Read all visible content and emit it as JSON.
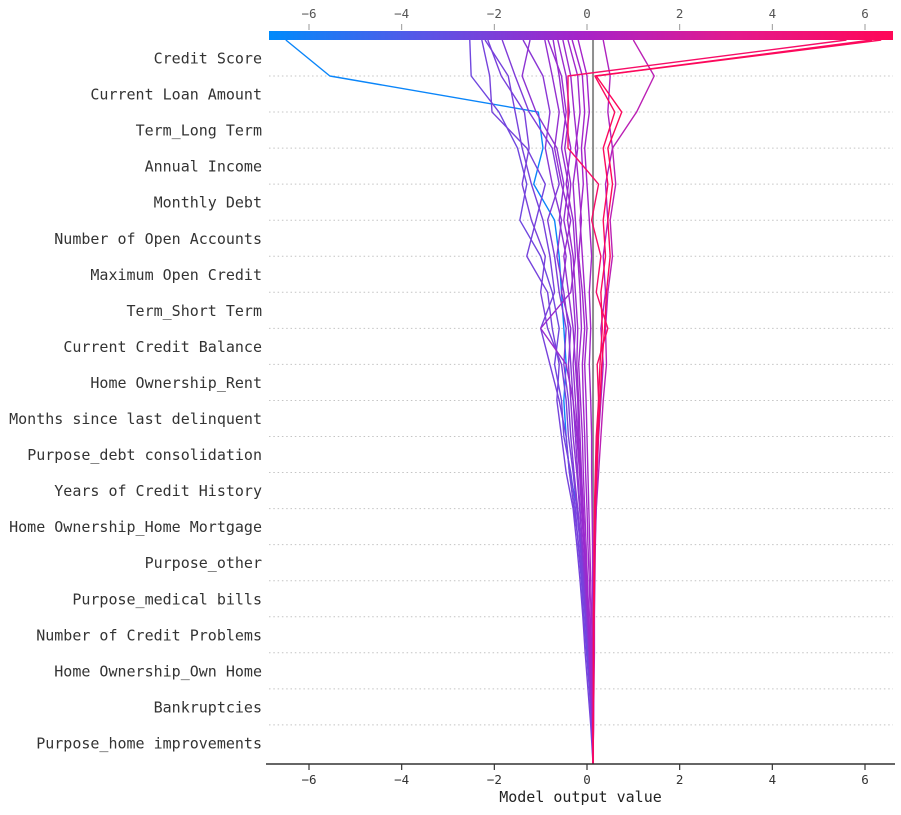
{
  "chart_data": {
    "type": "line",
    "subtype": "shap-decision-plot",
    "xlabel": "Model output value",
    "x_ticks": [
      -6,
      -4,
      -2,
      0,
      2,
      4,
      6
    ],
    "x_tick_labels": [
      "−6",
      "−4",
      "−2",
      "0",
      "2",
      "4",
      "6"
    ],
    "xlim": [
      -6.86,
      6.6
    ],
    "base_value": 0.13,
    "grid": true,
    "legend_position": "none",
    "features_top_to_bottom": [
      "Credit Score",
      "Current Loan Amount",
      "Term_Long Term",
      "Annual Income",
      "Monthly Debt",
      "Number of Open Accounts",
      "Maximum Open Credit",
      "Term_Short Term",
      "Current Credit Balance",
      "Home Ownership_Rent",
      "Months since last delinquent",
      "Purpose_debt consolidation",
      "Years of Credit History",
      "Home Ownership_Home Mortgage",
      "Purpose_other",
      "Purpose_medical bills",
      "Number of Credit Problems",
      "Home Ownership_Own Home",
      "Bankruptcies",
      "Purpose_home improvements"
    ],
    "colorbar": {
      "orientation": "horizontal-top",
      "stops": [
        {
          "pos": 0.0,
          "color": "#008bfb"
        },
        {
          "pos": 0.25,
          "color": "#5a55e6"
        },
        {
          "pos": 0.5,
          "color": "#a623c8"
        },
        {
          "pos": 0.75,
          "color": "#e41a8c"
        },
        {
          "pos": 1.0,
          "color": "#ff0757"
        }
      ]
    },
    "colors": {
      "axis": "#333333",
      "grid": "#c4c4c4",
      "base_line": "#8f8f8f",
      "tick_label_top": "#555555",
      "tick_label_bottom": "#333333",
      "feature_label": "#333333",
      "xlabel": "#222222"
    },
    "lines": [
      {
        "final": -6.5,
        "path": [
          -6.5,
          -5.55,
          -1.05,
          -0.95,
          -1.15,
          -0.7,
          -0.6,
          -0.55,
          -0.5,
          -0.45,
          -0.5,
          -0.45,
          -0.38,
          -0.2,
          -0.14,
          -0.09,
          -0.04,
          0.01,
          0.06,
          0.11,
          0.13
        ]
      },
      {
        "final": -2.53,
        "path": [
          -2.53,
          -2.5,
          -1.9,
          -1.5,
          -1.3,
          -1.45,
          -1.0,
          -0.75,
          -0.6,
          -0.7,
          -0.55,
          -0.5,
          -0.35,
          -0.25,
          -0.19,
          -0.12,
          -0.07,
          -0.01,
          0.05,
          0.1,
          0.13
        ]
      },
      {
        "final": -2.27,
        "path": [
          -2.27,
          -2.1,
          -2.05,
          -1.3,
          -0.9,
          -1.1,
          -1.3,
          -0.85,
          -0.75,
          -0.6,
          -0.65,
          -0.55,
          -0.45,
          -0.3,
          -0.22,
          -0.15,
          -0.09,
          -0.04,
          0.02,
          0.08,
          0.13
        ]
      },
      {
        "final": -2.2,
        "path": [
          -2.2,
          -1.7,
          -1.55,
          -1.4,
          -1.2,
          -0.95,
          -0.8,
          -0.7,
          -1.0,
          -0.8,
          -0.6,
          -0.45,
          -0.38,
          -0.28,
          -0.18,
          -0.1,
          -0.04,
          0.02,
          0.07,
          0.11,
          0.13
        ]
      },
      {
        "final": -2.14,
        "path": [
          -2.14,
          -1.85,
          -1.35,
          -1.25,
          -1.4,
          -1.2,
          -0.9,
          -1.0,
          -0.85,
          -0.55,
          -0.45,
          -0.4,
          -0.3,
          -0.22,
          -0.15,
          -0.08,
          -0.02,
          0.03,
          0.08,
          0.12,
          0.13
        ]
      },
      {
        "final": -1.83,
        "path": [
          -1.83,
          -1.55,
          -1.25,
          -0.75,
          -0.6,
          -0.85,
          -0.7,
          -0.6,
          -0.45,
          -0.5,
          -0.4,
          -0.35,
          -0.28,
          -0.2,
          -0.12,
          -0.06,
          0.0,
          0.05,
          0.09,
          0.12,
          0.13
        ]
      },
      {
        "final": -1.38,
        "path": [
          -1.38,
          -0.95,
          -0.8,
          -0.9,
          -0.75,
          -0.55,
          -0.65,
          -0.5,
          -0.4,
          -0.35,
          -0.3,
          -0.25,
          -0.2,
          -0.15,
          -0.1,
          -0.05,
          0.0,
          0.04,
          0.08,
          0.11,
          0.13
        ]
      },
      {
        "final": -1.23,
        "path": [
          -1.23,
          -1.4,
          -1.1,
          -0.65,
          -0.5,
          -0.6,
          -0.45,
          -0.55,
          -0.35,
          -0.4,
          -0.35,
          -0.3,
          -0.22,
          -0.16,
          -0.1,
          -0.04,
          0.02,
          0.06,
          0.1,
          0.12,
          0.13
        ]
      },
      {
        "final": -0.91,
        "path": [
          -0.91,
          -0.75,
          -0.6,
          -0.7,
          -0.55,
          -0.35,
          -0.5,
          -0.4,
          -0.3,
          -0.25,
          -0.2,
          -0.18,
          -0.14,
          -0.1,
          -0.06,
          -0.02,
          0.02,
          0.06,
          0.09,
          0.12,
          0.13
        ]
      },
      {
        "final": -0.84,
        "path": [
          -0.84,
          -0.55,
          -0.45,
          -0.55,
          -0.4,
          -0.5,
          -0.35,
          -0.3,
          -0.25,
          -0.3,
          -0.25,
          -0.2,
          -0.15,
          -0.1,
          -0.05,
          0.0,
          0.04,
          0.07,
          0.1,
          0.12,
          0.13
        ]
      },
      {
        "final": -0.73,
        "path": [
          -0.73,
          -0.6,
          -0.5,
          -0.35,
          -0.45,
          -0.3,
          -0.25,
          -0.35,
          -1.0,
          -0.45,
          -0.3,
          -0.22,
          -0.16,
          -0.12,
          -0.07,
          -0.02,
          0.03,
          0.06,
          0.1,
          0.12,
          0.13
        ]
      },
      {
        "final": -0.63,
        "path": [
          -0.63,
          -0.45,
          -0.38,
          -0.48,
          -0.35,
          -0.42,
          -0.3,
          -0.25,
          -0.2,
          -0.22,
          -0.18,
          -0.15,
          -0.12,
          -0.08,
          -0.05,
          -0.01,
          0.03,
          0.06,
          0.09,
          0.12,
          0.13
        ]
      },
      {
        "final": -0.52,
        "path": [
          -0.52,
          -0.35,
          -0.28,
          -0.2,
          -0.3,
          -0.25,
          -0.2,
          -0.15,
          -0.12,
          -0.18,
          -0.14,
          -0.1,
          -0.08,
          -0.05,
          -0.02,
          0.01,
          0.04,
          0.07,
          0.1,
          0.12,
          0.13
        ]
      },
      {
        "final": -0.41,
        "path": [
          -0.41,
          -0.2,
          -0.15,
          -0.25,
          -0.18,
          -0.12,
          -0.18,
          -0.1,
          -0.05,
          -0.1,
          -0.08,
          -0.05,
          -0.03,
          0.0,
          0.02,
          0.05,
          0.07,
          0.09,
          0.11,
          0.13,
          0.13
        ]
      },
      {
        "final": -0.32,
        "path": [
          -0.32,
          -0.1,
          -0.05,
          -0.12,
          -0.08,
          -0.15,
          -0.1,
          -0.05,
          0.0,
          -0.05,
          -0.02,
          0.0,
          0.02,
          0.04,
          0.06,
          0.08,
          0.1,
          0.11,
          0.12,
          0.13,
          0.13
        ]
      },
      {
        "final": -0.19,
        "path": [
          -0.19,
          0.0,
          0.05,
          -0.05,
          0.0,
          0.05,
          0.1,
          0.05,
          0.08,
          0.05,
          0.08,
          0.1,
          0.1,
          0.11,
          0.12,
          0.12,
          0.13,
          0.13,
          0.14,
          0.14,
          0.13
        ]
      },
      {
        "final": 0.35,
        "path": [
          0.35,
          0.5,
          0.45,
          0.55,
          0.4,
          0.45,
          0.35,
          0.4,
          0.3,
          0.35,
          0.3,
          0.25,
          0.22,
          0.2,
          0.18,
          0.17,
          0.16,
          0.16,
          0.15,
          0.14,
          0.13
        ]
      },
      {
        "final": 1.0,
        "path": [
          1.0,
          1.45,
          1.07,
          0.55,
          0.62,
          0.5,
          0.55,
          0.45,
          0.4,
          0.42,
          0.35,
          0.3,
          0.25,
          0.2,
          0.17,
          0.16,
          0.15,
          0.15,
          0.14,
          0.14,
          0.13
        ]
      },
      {
        "final": 5.6,
        "path": [
          5.6,
          -0.41,
          -0.41,
          -0.41,
          0.25,
          0.1,
          0.3,
          0.2,
          0.45,
          0.22,
          0.25,
          0.2,
          0.18,
          0.16,
          0.15,
          0.15,
          0.14,
          0.14,
          0.14,
          0.13,
          0.13
        ]
      },
      {
        "final": 6.15,
        "path": [
          6.15,
          0.17,
          0.6,
          0.35,
          0.45,
          0.35,
          0.4,
          0.3,
          0.33,
          0.28,
          0.25,
          0.22,
          0.2,
          0.18,
          0.16,
          0.15,
          0.14,
          0.14,
          0.14,
          0.13,
          0.13
        ]
      },
      {
        "final": 6.35,
        "path": [
          6.35,
          0.2,
          0.75,
          0.45,
          0.55,
          0.45,
          0.5,
          0.42,
          0.38,
          0.32,
          0.28,
          0.24,
          0.21,
          0.18,
          0.17,
          0.16,
          0.15,
          0.14,
          0.14,
          0.13,
          0.13
        ]
      }
    ]
  }
}
